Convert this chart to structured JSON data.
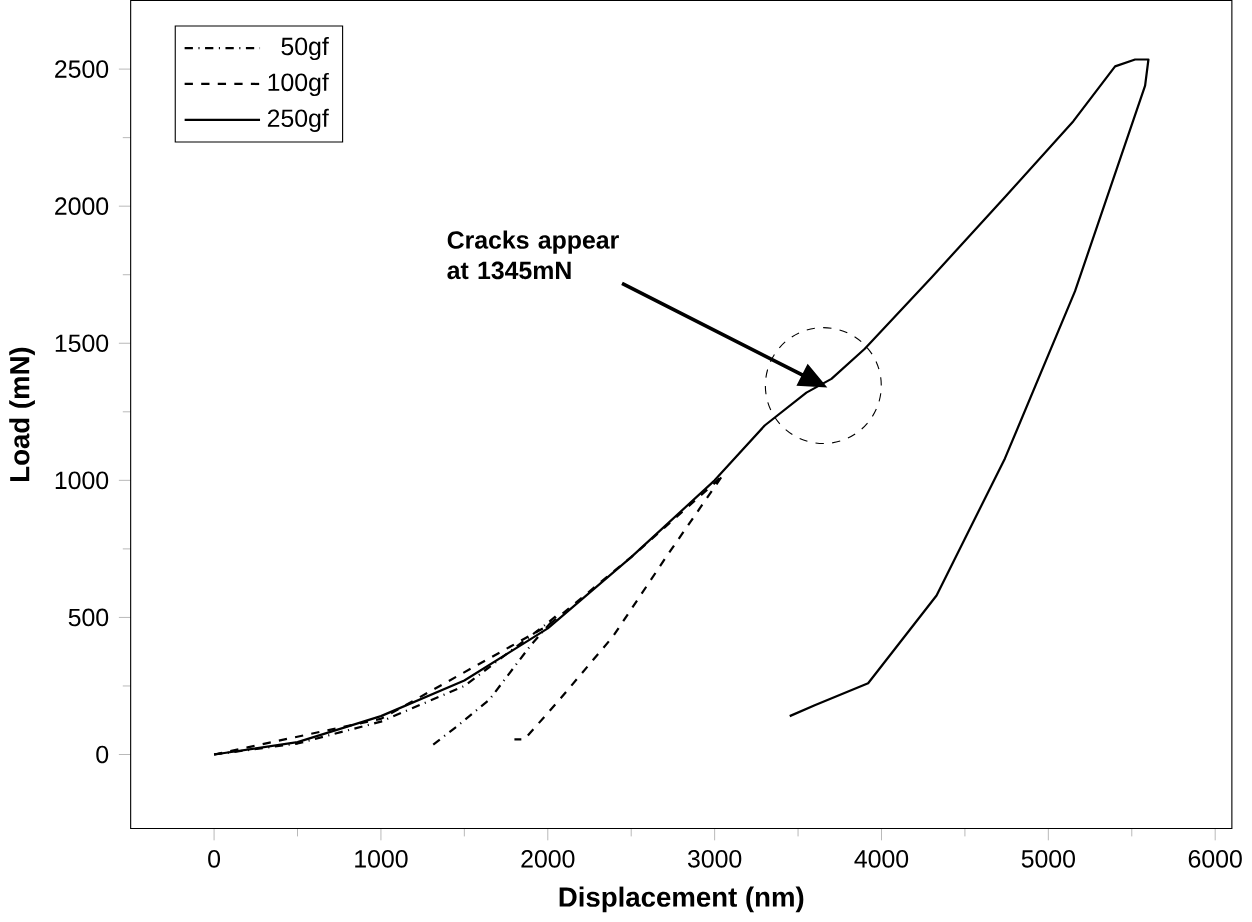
{
  "chart_data": {
    "type": "line",
    "xlabel": "Displacement (nm)",
    "ylabel": "Load (mN)",
    "xlim": [
      -500,
      6100
    ],
    "ylim": [
      -270,
      2750
    ],
    "xticks": [
      0,
      1000,
      2000,
      3000,
      4000,
      5000,
      6000
    ],
    "yticks": [
      0,
      500,
      1000,
      1500,
      2000,
      2500
    ],
    "legend": "top left",
    "grid": false,
    "series": [
      {
        "name": "50gf",
        "color": "#000000",
        "line_style": "dashdotted",
        "x": [
          0,
          500,
          1000,
          1500,
          2000,
          2060,
          1900,
          1650,
          1450,
          1300
        ],
        "values": [
          0,
          40,
          120,
          250,
          480,
          510,
          400,
          200,
          100,
          30
        ]
      },
      {
        "name": "100gf",
        "color": "#000000",
        "line_style": "dashed",
        "x": [
          0,
          1000,
          2000,
          2500,
          3000,
          3050,
          2720,
          2390,
          2070,
          1860,
          1800
        ],
        "values": [
          0,
          130,
          470,
          720,
          990,
          1020,
          730,
          430,
          200,
          55,
          55
        ]
      },
      {
        "name": "250gf",
        "color": "#000000",
        "line_style": "solid",
        "x": [
          0,
          500,
          1000,
          1500,
          2000,
          2500,
          3000,
          3300,
          3550,
          3700,
          3900,
          4300,
          4750,
          5150,
          5400,
          5520,
          5600,
          5580,
          5160,
          4740,
          4330,
          3920,
          3600,
          3450
        ],
        "values": [
          0,
          45,
          140,
          270,
          460,
          720,
          1000,
          1200,
          1320,
          1370,
          1480,
          1740,
          2040,
          2310,
          2510,
          2535,
          2535,
          2440,
          1690,
          1080,
          580,
          260,
          180,
          140
        ]
      }
    ],
    "annotations": [
      "Cracks appear at 1345mN"
    ]
  }
}
